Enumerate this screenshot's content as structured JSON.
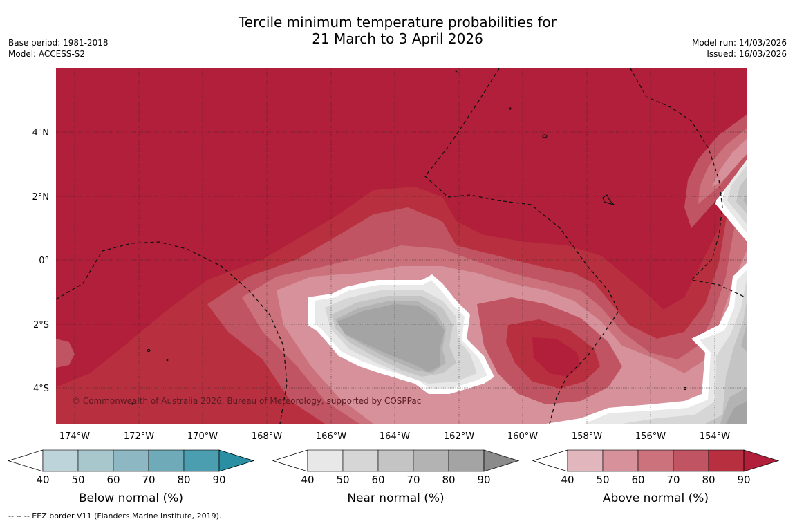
{
  "title": {
    "line1": "Tercile minimum temperature probabilities for",
    "line2": "21 March to 3 April 2026"
  },
  "meta": {
    "base_period": "Base period: 1981-2018",
    "model": "Model: ACCESS-S2",
    "model_run": "Model run: 14/03/2026",
    "issued": "Issued: 16/03/2026"
  },
  "map": {
    "copyright": "© Commonwealth of Australia 2026, Bureau of Meteorology, supported by COSPPac",
    "lon_ticks": [
      "174°W",
      "172°W",
      "170°W",
      "168°W",
      "166°W",
      "164°W",
      "162°W",
      "160°W",
      "158°W",
      "156°W",
      "154°W"
    ],
    "lat_ticks": [
      "4°N",
      "2°N",
      "0°",
      "2°S",
      "4°S"
    ]
  },
  "colorbars": [
    {
      "title": "Below normal (%)",
      "ticks": [
        "40",
        "50",
        "60",
        "70",
        "80",
        "90"
      ],
      "colors": [
        "#bdd4db",
        "#a8c7cd",
        "#8db7c2",
        "#6eaab8",
        "#4b9eb0",
        "#2a8fa3"
      ]
    },
    {
      "title": "Near normal (%)",
      "ticks": [
        "40",
        "50",
        "60",
        "70",
        "80",
        "90"
      ],
      "colors": [
        "#e8e8e8",
        "#d6d6d6",
        "#c4c4c4",
        "#b3b3b3",
        "#a4a4a4",
        "#8b8b8b"
      ]
    },
    {
      "title": "Above normal (%)",
      "ticks": [
        "40",
        "50",
        "60",
        "70",
        "80",
        "90"
      ],
      "colors": [
        "#e2b6bd",
        "#d6919b",
        "#cb727d",
        "#c05462",
        "#b8303f",
        "#b21f3a"
      ]
    }
  ],
  "footnote": "--  --  -- EEZ border V11 (Flanders Marine Institute, 2019)."
}
